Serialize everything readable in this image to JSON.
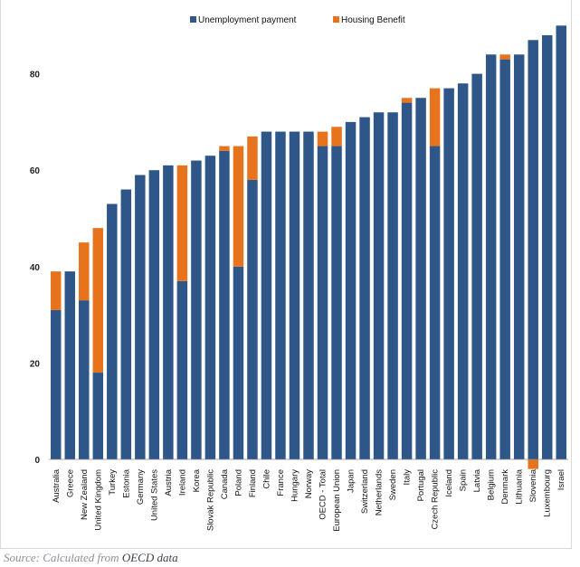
{
  "chart_data": {
    "type": "bar",
    "stacked": true,
    "title": "",
    "xlabel": "",
    "ylabel": "",
    "ylim": [
      0,
      90
    ],
    "yticks": [
      0,
      20,
      40,
      60,
      80
    ],
    "grid": false,
    "legend_position": "top-center",
    "categories": [
      "Australia",
      "Greece",
      "New Zealand",
      "United Kingdom",
      "Turkey",
      "Estonia",
      "Germany",
      "United States",
      "Austria",
      "Ireland",
      "Korea",
      "Slovak Republic",
      "Canada",
      "Poland",
      "Finland",
      "Chile",
      "France",
      "Hungary",
      "Norway",
      "OECD - Total",
      "European Union",
      "Japan",
      "Switzerland",
      "Netherlands",
      "Sweden",
      "Italy",
      "Portugal",
      "Czech Republic",
      "Iceland",
      "Spain",
      "Latvia",
      "Belgium",
      "Denmark",
      "Lithuania",
      "Slovenia",
      "Luxembourg",
      "Israel"
    ],
    "series": [
      {
        "name": "Unemployment payment",
        "color": "#2e5689",
        "values": [
          31,
          39,
          33,
          18,
          53,
          56,
          59,
          60,
          61,
          37,
          62,
          63,
          64,
          40,
          58,
          68,
          68,
          68,
          68,
          65,
          65,
          70,
          71,
          72,
          72,
          74,
          75,
          65,
          77,
          78,
          80,
          84,
          83,
          84,
          87,
          88,
          90
        ]
      },
      {
        "name": "Housing Benefit",
        "color": "#e8731d",
        "values": [
          8,
          0,
          12,
          30,
          0,
          0,
          0,
          0,
          0,
          24,
          0,
          0,
          1,
          25,
          9,
          0,
          0,
          0,
          0,
          3,
          4,
          0,
          0,
          0,
          0,
          1,
          0,
          12,
          0,
          0,
          0,
          0,
          1,
          0,
          -2,
          0,
          0
        ]
      }
    ]
  },
  "source": {
    "prefix": "Source: Calculated from",
    "link_text": "OECD data"
  }
}
